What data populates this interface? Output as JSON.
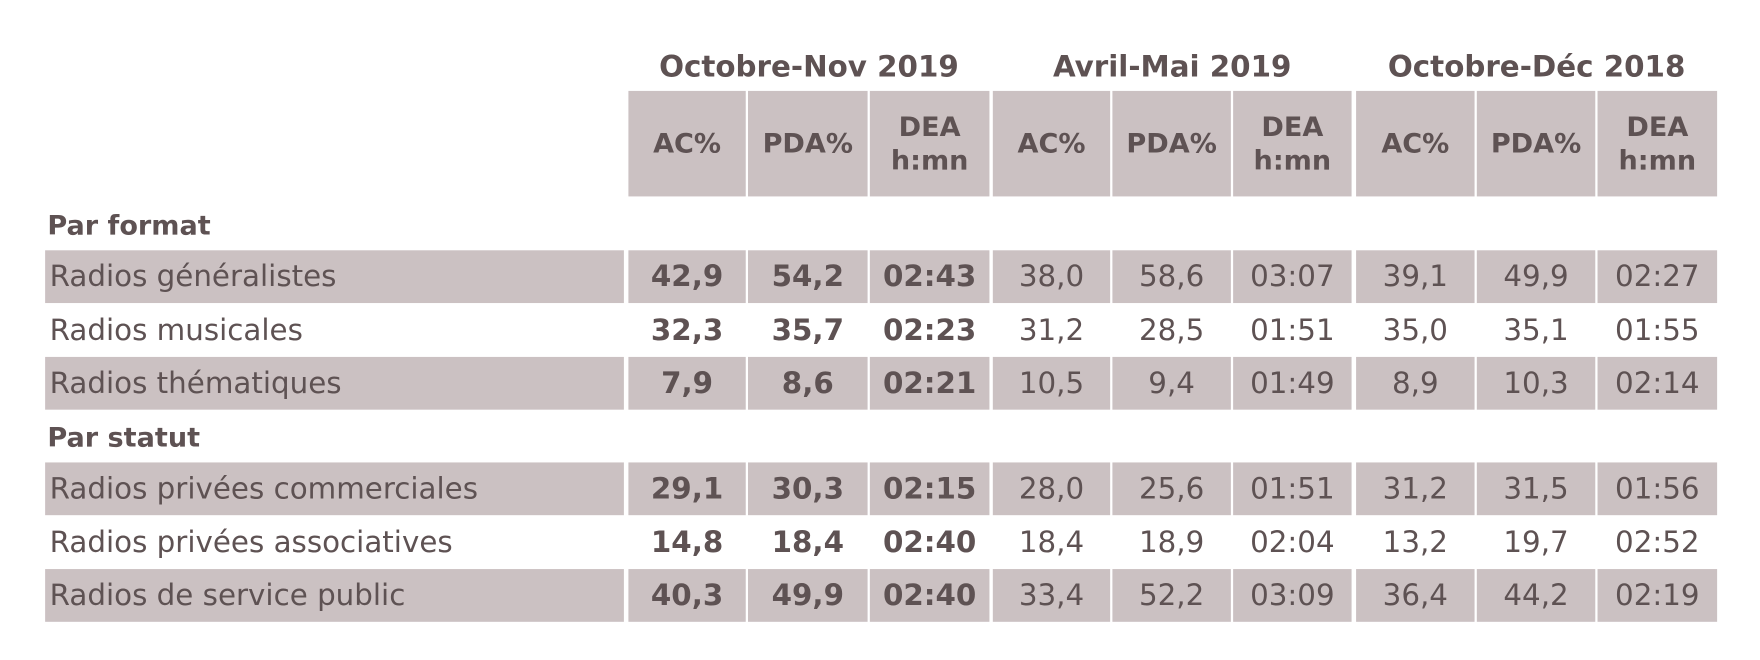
{
  "groups": [
    "Octobre-Nov 2019",
    "Avril-Mai 2019",
    "Octobre-Déc 2018"
  ],
  "columns": {
    "ac": "AC%",
    "pda": "PDA%",
    "dea_line1": "DEA",
    "dea_line2": "h:mn"
  },
  "sections": [
    {
      "title": "Par format",
      "rows": [
        {
          "label": "Radios généralistes",
          "values": [
            "42,9",
            "54,2",
            "02:43",
            "38,0",
            "58,6",
            "03:07",
            "39,1",
            "49,9",
            "02:27"
          ],
          "shaded": true
        },
        {
          "label": "Radios musicales",
          "values": [
            "32,3",
            "35,7",
            "02:23",
            "31,2",
            "28,5",
            "01:51",
            "35,0",
            "35,1",
            "01:55"
          ],
          "shaded": false
        },
        {
          "label": "Radios thématiques",
          "values": [
            "7,9",
            "8,6",
            "02:21",
            "10,5",
            "9,4",
            "01:49",
            "8,9",
            "10,3",
            "02:14"
          ],
          "shaded": true
        }
      ]
    },
    {
      "title": "Par statut",
      "rows": [
        {
          "label": "Radios privées commerciales",
          "values": [
            "29,1",
            "30,3",
            "02:15",
            "28,0",
            "25,6",
            "01:51",
            "31,2",
            "31,5",
            "01:56"
          ],
          "shaded": true
        },
        {
          "label": "Radios privées associatives",
          "values": [
            "14,8",
            "18,4",
            "02:40",
            "18,4",
            "18,9",
            "02:04",
            "13,2",
            "19,7",
            "02:52"
          ],
          "shaded": false
        },
        {
          "label": "Radios de service public",
          "values": [
            "40,3",
            "49,9",
            "02:40",
            "33,4",
            "52,2",
            "03:09",
            "36,4",
            "44,2",
            "02:19"
          ],
          "shaded": true
        }
      ]
    }
  ],
  "colors": {
    "shade": "#cbc1c2",
    "text": "#5e5253"
  }
}
